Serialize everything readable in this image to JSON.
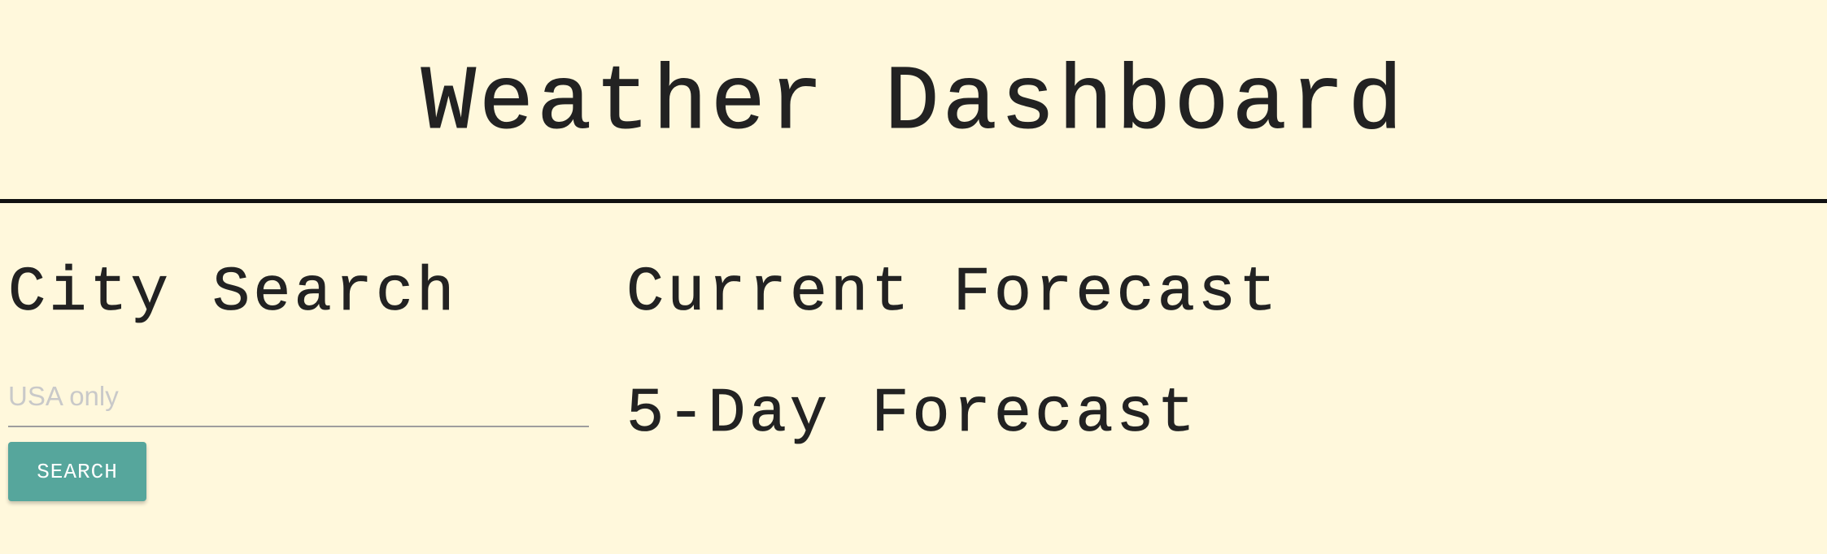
{
  "header": {
    "title": "Weather Dashboard"
  },
  "search": {
    "title": "City Search",
    "placeholder": "USA only",
    "value": "",
    "button_label": "SEARCH"
  },
  "forecast": {
    "current_title": "Current Forecast",
    "five_day_title": "5-Day Forecast"
  },
  "colors": {
    "background": "#fff8dc",
    "button": "#56a69c",
    "divider": "#111111"
  }
}
